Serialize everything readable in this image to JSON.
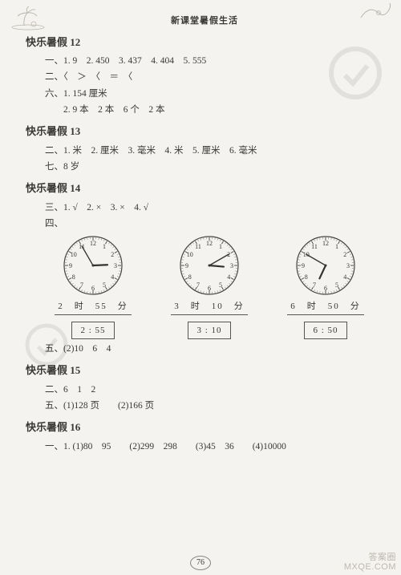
{
  "header": {
    "title": "新课堂暑假生活"
  },
  "pageNumber": "76",
  "watermark": {
    "top": "答案圈",
    "bottom": "MXQE.COM"
  },
  "colors": {
    "bg": "#f5f3ef",
    "ink": "#3a3834",
    "light": "#bdb8af",
    "stroke": "#444"
  },
  "sections": [
    {
      "title": "快乐暑假 12",
      "lines": [
        "一、1. 9　2. 450　3. 437　4. 404　5. 555",
        "二、〈　＞　〈　＝　〈",
        "六、1. 154 厘米",
        "　　2. 9 本　2 本　6 个　2 本"
      ]
    },
    {
      "title": "快乐暑假 13",
      "lines": [
        "二、1. 米　2. 厘米　3. 毫米　4. 米　5. 厘米　6. 毫米",
        "七、8 岁"
      ]
    },
    {
      "title": "快乐暑假 14",
      "lines": [
        "三、1. √　2. ×　3. ×　4. √",
        "四、"
      ],
      "clocks": [
        {
          "h": 2,
          "m": 55,
          "label_h": "2",
          "label_m": "55",
          "digital": "2 : 55"
        },
        {
          "h": 3,
          "m": 10,
          "label_h": "3",
          "label_m": "10",
          "digital": "3 : 10"
        },
        {
          "h": 6,
          "m": 50,
          "label_h": "6",
          "label_m": "50",
          "digital": "6 : 50"
        }
      ],
      "lines_after": [
        "五、(2)10　6　4"
      ]
    },
    {
      "title": "快乐暑假 15",
      "lines": [
        "二、6　1　2",
        "五、(1)128 页　　(2)166 页"
      ]
    },
    {
      "title": "快乐暑假 16",
      "lines": [
        "一、1. (1)80　95　　(2)299　298　　(3)45　36　　(4)10000"
      ]
    }
  ],
  "labels": {
    "hour": "时",
    "minute": "分"
  },
  "clockStyle": {
    "radius": 36,
    "centerDot": 1.5,
    "hourHandLen": 18,
    "minHandLen": 28,
    "handColor": "#333",
    "faceStroke": "#444",
    "numberFont": 8
  }
}
